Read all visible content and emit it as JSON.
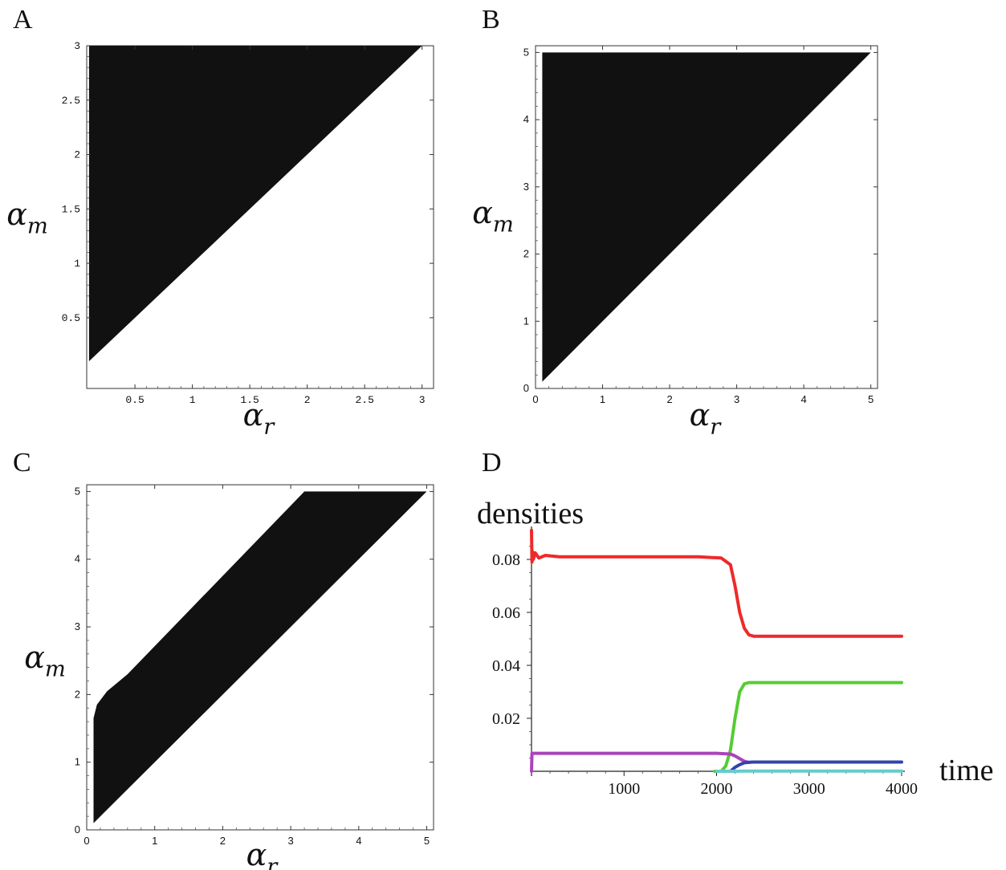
{
  "panels": {
    "A": "A",
    "B": "B",
    "C": "C",
    "D": "D"
  },
  "chart_data": [
    {
      "id": "A",
      "type": "area",
      "xlabel": "αr",
      "ylabel": "αm",
      "xlim": [
        0.08,
        3.1
      ],
      "ylim": [
        -0.15,
        3.0
      ],
      "xticks": [
        "0.5",
        "1",
        "1.5",
        "2",
        "2.5",
        "3"
      ],
      "xtick_values": [
        0.5,
        1,
        1.5,
        2,
        2.5,
        3
      ],
      "yticks": [
        "0.5",
        "1",
        "1.5",
        "2",
        "2.5",
        "3"
      ],
      "ytick_values": [
        0.5,
        1,
        1.5,
        2,
        2.5,
        3
      ],
      "region_color": "#111111",
      "region": [
        [
          0.1,
          0.1
        ],
        [
          0.1,
          3.0
        ],
        [
          3.0,
          3.0
        ]
      ]
    },
    {
      "id": "B",
      "type": "area",
      "xlabel": "αr",
      "ylabel": "αm",
      "xlim": [
        0,
        5.1
      ],
      "ylim": [
        0,
        5.1
      ],
      "xticks": [
        "0",
        "1",
        "2",
        "3",
        "4",
        "5"
      ],
      "xtick_values": [
        0,
        1,
        2,
        3,
        4,
        5
      ],
      "yticks": [
        "0",
        "1",
        "2",
        "3",
        "4",
        "5"
      ],
      "ytick_values": [
        0,
        1,
        2,
        3,
        4,
        5
      ],
      "region_color": "#111111",
      "region": [
        [
          0.1,
          0.1
        ],
        [
          0.1,
          5.0
        ],
        [
          5.0,
          5.0
        ]
      ]
    },
    {
      "id": "C",
      "type": "area",
      "xlabel": "αr",
      "ylabel": "αm",
      "xlim": [
        0,
        5.1
      ],
      "ylim": [
        0,
        5.1
      ],
      "xticks": [
        "0",
        "1",
        "2",
        "3",
        "4",
        "5"
      ],
      "xtick_values": [
        0,
        1,
        2,
        3,
        4,
        5
      ],
      "yticks": [
        "0",
        "1",
        "2",
        "3",
        "4",
        "5"
      ],
      "ytick_values": [
        0,
        1,
        2,
        3,
        4,
        5
      ],
      "region_color": "#111111",
      "region": [
        [
          0.1,
          0.1
        ],
        [
          0.1,
          1.65
        ],
        [
          0.15,
          1.85
        ],
        [
          0.3,
          2.05
        ],
        [
          0.6,
          2.3
        ],
        [
          3.2,
          5.0
        ],
        [
          5.0,
          5.0
        ]
      ]
    },
    {
      "id": "D",
      "type": "line",
      "xlabel": "time",
      "ylabel": "densities",
      "xlim": [
        0,
        4000
      ],
      "ylim": [
        0,
        0.09
      ],
      "xticks": [
        "1000",
        "2000",
        "3000",
        "4000"
      ],
      "xtick_values": [
        1000,
        2000,
        3000,
        4000
      ],
      "yticks": [
        "0.02",
        "0.04",
        "0.06",
        "0.08"
      ],
      "ytick_values": [
        0.02,
        0.04,
        0.06,
        0.08
      ],
      "series": [
        {
          "color": "#ee2a2a",
          "x": [
            0,
            5,
            10,
            20,
            40,
            80,
            150,
            300,
            1000,
            1800,
            2050,
            2150,
            2200,
            2250,
            2300,
            2350,
            2400,
            2500,
            3000,
            4000
          ],
          "y": [
            0.091,
            0.079,
            0.083,
            0.08,
            0.0825,
            0.0805,
            0.0815,
            0.081,
            0.081,
            0.081,
            0.0805,
            0.078,
            0.07,
            0.06,
            0.054,
            0.0515,
            0.051,
            0.051,
            0.051,
            0.051
          ]
        },
        {
          "color": "#55cc33",
          "x": [
            1980,
            2050,
            2100,
            2150,
            2200,
            2250,
            2300,
            2350,
            2400,
            3000,
            4000
          ],
          "y": [
            0.0,
            0.0,
            0.002,
            0.008,
            0.02,
            0.03,
            0.033,
            0.0335,
            0.0335,
            0.0335,
            0.0335
          ]
        },
        {
          "color": "#aa44bb",
          "x": [
            0,
            5,
            10,
            100,
            1000,
            2000,
            2150,
            2200,
            2250,
            2300,
            2350
          ],
          "y": [
            0.0,
            0.0068,
            0.0068,
            0.0068,
            0.0068,
            0.0068,
            0.0065,
            0.0058,
            0.0048,
            0.0038,
            0.0033
          ]
        },
        {
          "color": "#3344aa",
          "x": [
            2050,
            2150,
            2200,
            2250,
            2300,
            2350,
            2400,
            3000,
            4000
          ],
          "y": [
            0.0,
            0.0,
            0.0015,
            0.0025,
            0.0032,
            0.0034,
            0.0035,
            0.0035,
            0.0035
          ]
        },
        {
          "color": "#66cccc",
          "x": [
            2000,
            2200,
            2300,
            3000,
            4000
          ],
          "y": [
            0.0,
            0.0,
            0.0001,
            0.0001,
            0.0001
          ]
        }
      ]
    }
  ]
}
